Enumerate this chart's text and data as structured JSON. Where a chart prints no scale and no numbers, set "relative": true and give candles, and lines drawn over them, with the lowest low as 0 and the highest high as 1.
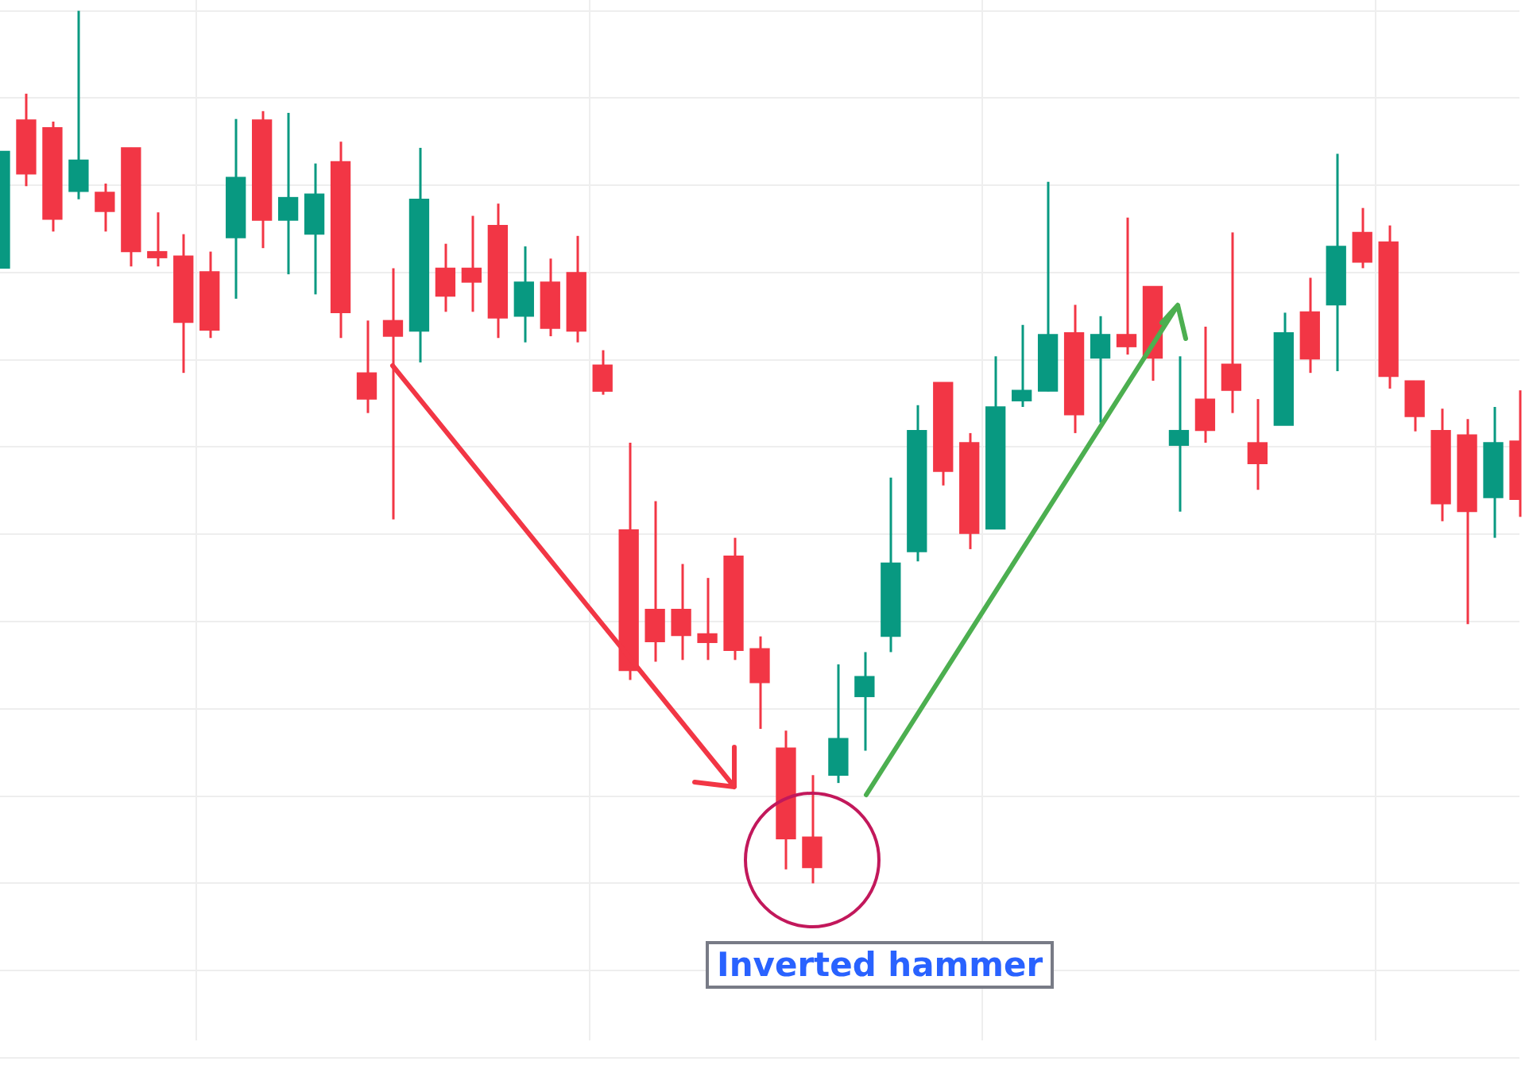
{
  "chart_data": {
    "type": "candlestick",
    "relative": true,
    "grid": true,
    "categories": [
      null,
      null,
      null,
      null,
      null,
      null,
      null,
      null,
      null,
      null,
      null,
      null,
      null,
      null,
      null,
      null,
      null,
      null,
      null,
      null,
      null,
      null,
      null,
      null,
      null,
      null,
      null,
      null,
      null,
      null,
      null,
      null,
      null,
      null,
      null,
      null,
      null,
      null,
      null,
      null,
      null,
      null,
      null,
      null,
      null,
      null,
      null,
      null,
      null,
      null,
      null,
      null,
      null,
      null,
      null,
      null,
      null,
      null,
      null
    ],
    "ohlc": [
      [
        0.705,
        0.839,
        0.705,
        0.839
      ],
      [
        0.875,
        0.905,
        0.799,
        0.813
      ],
      [
        0.866,
        0.873,
        0.747,
        0.761
      ],
      [
        0.793,
        1.0,
        0.784,
        0.829
      ],
      [
        0.792,
        0.802,
        0.747,
        0.77
      ],
      [
        0.843,
        0.843,
        0.707,
        0.724
      ],
      [
        0.724,
        0.769,
        0.707,
        0.717
      ],
      [
        0.719,
        0.744,
        0.585,
        0.643
      ],
      [
        0.701,
        0.724,
        0.625,
        0.634
      ],
      [
        0.74,
        0.876,
        0.67,
        0.809
      ],
      [
        0.875,
        0.885,
        0.728,
        0.76
      ],
      [
        0.76,
        0.883,
        0.698,
        0.786
      ],
      [
        0.744,
        0.825,
        0.675,
        0.79
      ],
      [
        0.827,
        0.85,
        0.625,
        0.654
      ],
      [
        0.585,
        0.645,
        0.539,
        0.555
      ],
      [
        0.645,
        0.705,
        0.417,
        0.627
      ],
      [
        0.633,
        0.843,
        0.597,
        0.784
      ],
      [
        0.705,
        0.733,
        0.655,
        0.673
      ],
      [
        0.705,
        0.765,
        0.655,
        0.689
      ],
      [
        0.754,
        0.779,
        0.625,
        0.648
      ],
      [
        0.65,
        0.73,
        0.62,
        0.689
      ],
      [
        0.689,
        0.716,
        0.627,
        0.636
      ],
      [
        0.7,
        0.742,
        0.62,
        0.633
      ],
      [
        0.594,
        0.611,
        0.56,
        0.564
      ],
      [
        0.405,
        0.505,
        0.233,
        0.244
      ],
      [
        0.314,
        0.438,
        0.254,
        0.277
      ],
      [
        0.314,
        0.366,
        0.256,
        0.284
      ],
      [
        0.286,
        0.35,
        0.256,
        0.276
      ],
      [
        0.375,
        0.396,
        0.256,
        0.267
      ],
      [
        0.269,
        0.283,
        0.177,
        0.23
      ],
      [
        0.155,
        0.175,
        0.016,
        0.051
      ],
      [
        0.053,
        0.124,
        0.0,
        0.018
      ],
      [
        0.124,
        0.251,
        0.115,
        0.166
      ],
      [
        0.214,
        0.265,
        0.152,
        0.237
      ],
      [
        0.283,
        0.465,
        0.265,
        0.367
      ],
      [
        0.38,
        0.548,
        0.369,
        0.519
      ],
      [
        0.574,
        0.574,
        0.456,
        0.472
      ],
      [
        0.505,
        0.516,
        0.383,
        0.401
      ],
      [
        0.406,
        0.604,
        0.406,
        0.546
      ],
      [
        0.553,
        0.64,
        0.546,
        0.565
      ],
      [
        0.564,
        0.804,
        0.564,
        0.629
      ],
      [
        0.631,
        0.663,
        0.516,
        0.537
      ],
      [
        0.602,
        0.65,
        0.528,
        0.629
      ],
      [
        0.629,
        0.763,
        0.606,
        0.615
      ],
      [
        0.684,
        0.684,
        0.576,
        0.602
      ],
      [
        0.502,
        0.604,
        0.426,
        0.519
      ],
      [
        0.555,
        0.638,
        0.505,
        0.519
      ],
      [
        0.595,
        0.746,
        0.539,
        0.565
      ],
      [
        0.505,
        0.555,
        0.451,
        0.481
      ],
      [
        0.525,
        0.654,
        0.525,
        0.631
      ],
      [
        0.655,
        0.694,
        0.585,
        0.601
      ],
      [
        0.663,
        0.836,
        0.587,
        0.73
      ],
      [
        0.746,
        0.774,
        0.705,
        0.712
      ],
      [
        0.735,
        0.754,
        0.567,
        0.581
      ],
      [
        0.576,
        0.576,
        0.518,
        0.535
      ],
      [
        0.519,
        0.544,
        0.415,
        0.435
      ],
      [
        0.514,
        0.532,
        0.297,
        0.426
      ],
      [
        0.442,
        0.546,
        0.396,
        0.505
      ],
      [
        0.507,
        0.565,
        0.42,
        0.44
      ]
    ],
    "colors": [
      "#089981",
      "#f23645",
      "#f23645",
      "#089981",
      "#f23645",
      "#f23645",
      "#f23645",
      "#f23645",
      "#f23645",
      "#089981",
      "#f23645",
      "#089981",
      "#089981",
      "#f23645",
      "#f23645",
      "#f23645",
      "#089981",
      "#f23645",
      "#f23645",
      "#f23645",
      "#089981",
      "#f23645",
      "#f23645",
      "#f23645",
      "#f23645",
      "#f23645",
      "#f23645",
      "#f23645",
      "#f23645",
      "#f23645",
      "#f23645",
      "#f23645",
      "#089981",
      "#089981",
      "#089981",
      "#089981",
      "#f23645",
      "#f23645",
      "#089981",
      "#089981",
      "#089981",
      "#f23645",
      "#089981",
      "#f23645",
      "#f23645",
      "#089981",
      "#f23645",
      "#f23645",
      "#f23645",
      "#089981",
      "#f23645",
      "#089981",
      "#f23645",
      "#f23645",
      "#f23645",
      "#f23645",
      "#f23645",
      "#089981",
      "#f23645"
    ],
    "annotations": [
      "Inverted hammer"
    ]
  }
}
